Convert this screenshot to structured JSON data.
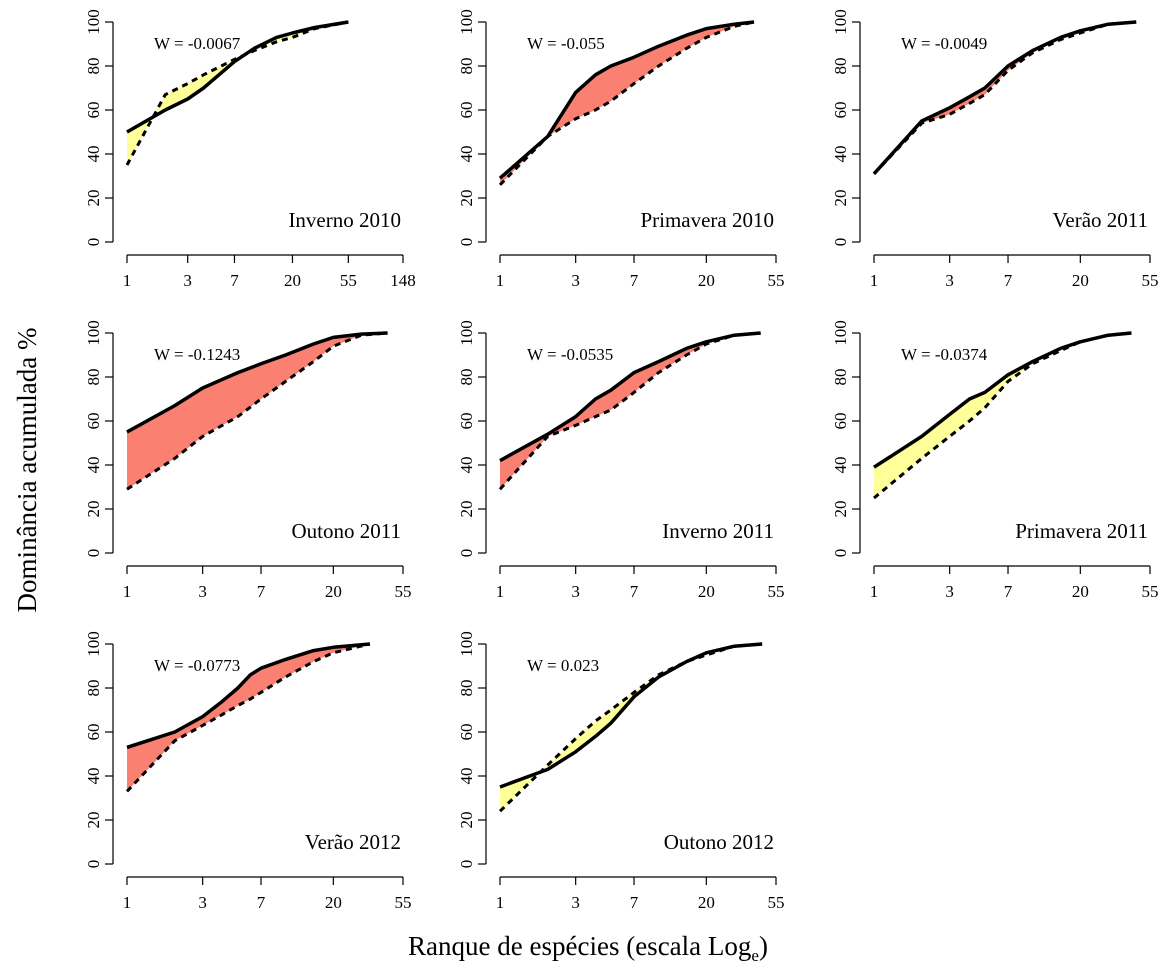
{
  "ylabel": "Dominância acumulada %",
  "xlabel": "Ranque de espécies (escala Log",
  "xlabel_subscript": "e",
  "xlabel_end": ")",
  "chart_data": [
    {
      "type": "line",
      "title": "Inverno 2010",
      "annotation": "W = -0.0067",
      "fill_color": "#ffff99",
      "log_x": true,
      "x": [
        1,
        2,
        3,
        4,
        7,
        10,
        15,
        20,
        30,
        55
      ],
      "series": [
        {
          "color": "#000000",
          "dashed": false,
          "values": [
            50,
            60,
            65,
            70,
            82,
            88,
            93,
            95,
            97.5,
            100
          ]
        },
        {
          "color": "#000000",
          "dashed": true,
          "values": [
            35,
            67,
            72,
            76,
            83,
            87,
            91,
            93,
            97,
            100
          ]
        }
      ],
      "xlim": [
        1,
        148
      ],
      "xticks": [
        1,
        3,
        7,
        20,
        55,
        148
      ],
      "ylim": [
        0,
        100
      ],
      "yticks": [
        0,
        20,
        40,
        60,
        80,
        100
      ]
    },
    {
      "type": "line",
      "title": "Primavera 2010",
      "annotation": "W = -0.055",
      "fill_color": "#fa8072",
      "log_x": true,
      "x": [
        1,
        2,
        3,
        4,
        5,
        7,
        10,
        15,
        20,
        30,
        40
      ],
      "series": [
        {
          "color": "#000000",
          "dashed": false,
          "values": [
            29,
            48,
            68,
            76,
            80,
            84,
            89,
            94,
            97,
            99,
            100
          ]
        },
        {
          "color": "#000000",
          "dashed": true,
          "values": [
            26,
            48,
            56,
            60,
            64,
            72,
            80,
            88,
            93,
            98,
            100
          ]
        }
      ],
      "xlim": [
        1,
        55
      ],
      "xticks": [
        1,
        3,
        7,
        20,
        55
      ],
      "ylim": [
        0,
        100
      ],
      "yticks": [
        0,
        20,
        40,
        60,
        80,
        100
      ]
    },
    {
      "type": "line",
      "title": "Verão 2011",
      "annotation": "W = -0.0049",
      "fill_color": "#fa8072",
      "log_x": true,
      "x": [
        1,
        2,
        3,
        4,
        5,
        7,
        10,
        15,
        20,
        30,
        45
      ],
      "series": [
        {
          "color": "#000000",
          "dashed": false,
          "values": [
            31,
            55,
            61,
            66,
            70,
            80,
            87,
            93,
            96,
            99,
            100
          ]
        },
        {
          "color": "#000000",
          "dashed": true,
          "values": [
            31,
            54,
            58,
            63,
            67,
            78,
            86,
            92,
            95,
            99,
            100
          ]
        }
      ],
      "xlim": [
        1,
        55
      ],
      "xticks": [
        1,
        3,
        7,
        20,
        55
      ],
      "ylim": [
        0,
        100
      ],
      "yticks": [
        0,
        20,
        40,
        60,
        80,
        100
      ]
    },
    {
      "type": "line",
      "title": "Outono 2011",
      "annotation": "W = -0.1243",
      "fill_color": "#fa8072",
      "log_x": true,
      "x": [
        1,
        2,
        3,
        5,
        7,
        10,
        15,
        20,
        30,
        44
      ],
      "series": [
        {
          "color": "#000000",
          "dashed": false,
          "values": [
            55,
            67,
            75,
            82,
            86,
            90,
            95,
            98,
            99.5,
            100
          ]
        },
        {
          "color": "#000000",
          "dashed": true,
          "values": [
            29,
            43,
            53,
            62,
            70,
            78,
            87,
            94,
            99,
            100
          ]
        }
      ],
      "xlim": [
        1,
        55
      ],
      "xticks": [
        1,
        3,
        7,
        20,
        55
      ],
      "ylim": [
        0,
        100
      ],
      "yticks": [
        0,
        20,
        40,
        60,
        80,
        100
      ]
    },
    {
      "type": "line",
      "title": "Inverno 2011",
      "annotation": "W = -0.0535",
      "fill_color": "#fa8072",
      "log_x": true,
      "x": [
        1,
        2,
        3,
        4,
        5,
        7,
        10,
        15,
        20,
        30,
        44
      ],
      "series": [
        {
          "color": "#000000",
          "dashed": false,
          "values": [
            42,
            54,
            62,
            70,
            74,
            82,
            87,
            93,
            96,
            99,
            100
          ]
        },
        {
          "color": "#000000",
          "dashed": true,
          "values": [
            29,
            53,
            58,
            62,
            65,
            73,
            82,
            90,
            95,
            99,
            100
          ]
        }
      ],
      "xlim": [
        1,
        55
      ],
      "xticks": [
        1,
        3,
        7,
        20,
        55
      ],
      "ylim": [
        0,
        100
      ],
      "yticks": [
        0,
        20,
        40,
        60,
        80,
        100
      ]
    },
    {
      "type": "line",
      "title": "Primavera 2011",
      "annotation": "W = -0.0374",
      "fill_color": "#ffff99",
      "log_x": true,
      "x": [
        1,
        2,
        3,
        4,
        5,
        7,
        10,
        15,
        20,
        30,
        42
      ],
      "series": [
        {
          "color": "#000000",
          "dashed": false,
          "values": [
            39,
            53,
            63,
            70,
            73,
            81,
            87,
            93,
            96,
            99,
            100
          ]
        },
        {
          "color": "#000000",
          "dashed": true,
          "values": [
            25,
            43,
            53,
            60,
            66,
            78,
            86,
            92,
            96,
            99,
            100
          ]
        }
      ],
      "xlim": [
        1,
        55
      ],
      "xticks": [
        1,
        3,
        7,
        20,
        55
      ],
      "ylim": [
        0,
        100
      ],
      "yticks": [
        0,
        20,
        40,
        60,
        80,
        100
      ]
    },
    {
      "type": "line",
      "title": "Verão 2012",
      "annotation": "W = -0.0773",
      "fill_color": "#fa8072",
      "log_x": true,
      "x": [
        1,
        2,
        3,
        4,
        5,
        6,
        7,
        10,
        15,
        20,
        34
      ],
      "series": [
        {
          "color": "#000000",
          "dashed": false,
          "values": [
            53,
            60,
            67,
            74,
            80,
            86,
            89,
            93,
            97,
            98.5,
            100
          ]
        },
        {
          "color": "#000000",
          "dashed": true,
          "values": [
            33,
            56,
            63,
            68,
            72,
            75,
            78,
            85,
            92,
            96,
            100
          ]
        }
      ],
      "xlim": [
        1,
        55
      ],
      "xticks": [
        1,
        3,
        7,
        20,
        55
      ],
      "ylim": [
        0,
        100
      ],
      "yticks": [
        0,
        20,
        40,
        60,
        80,
        100
      ]
    },
    {
      "type": "line",
      "title": "Outono 2012",
      "annotation": "W = 0.023",
      "fill_color": "#ffff99",
      "log_x": true,
      "x": [
        1,
        2,
        3,
        4,
        5,
        7,
        10,
        15,
        20,
        30,
        45
      ],
      "series": [
        {
          "color": "#000000",
          "dashed": false,
          "values": [
            35,
            43,
            51,
            58,
            64,
            76,
            85,
            92,
            96,
            99,
            100
          ]
        },
        {
          "color": "#000000",
          "dashed": true,
          "values": [
            24,
            45,
            57,
            65,
            70,
            78,
            86,
            92,
            95,
            99,
            100
          ]
        }
      ],
      "xlim": [
        1,
        55
      ],
      "xticks": [
        1,
        3,
        7,
        20,
        55
      ],
      "ylim": [
        0,
        100
      ],
      "yticks": [
        0,
        20,
        40,
        60,
        80,
        100
      ]
    }
  ]
}
